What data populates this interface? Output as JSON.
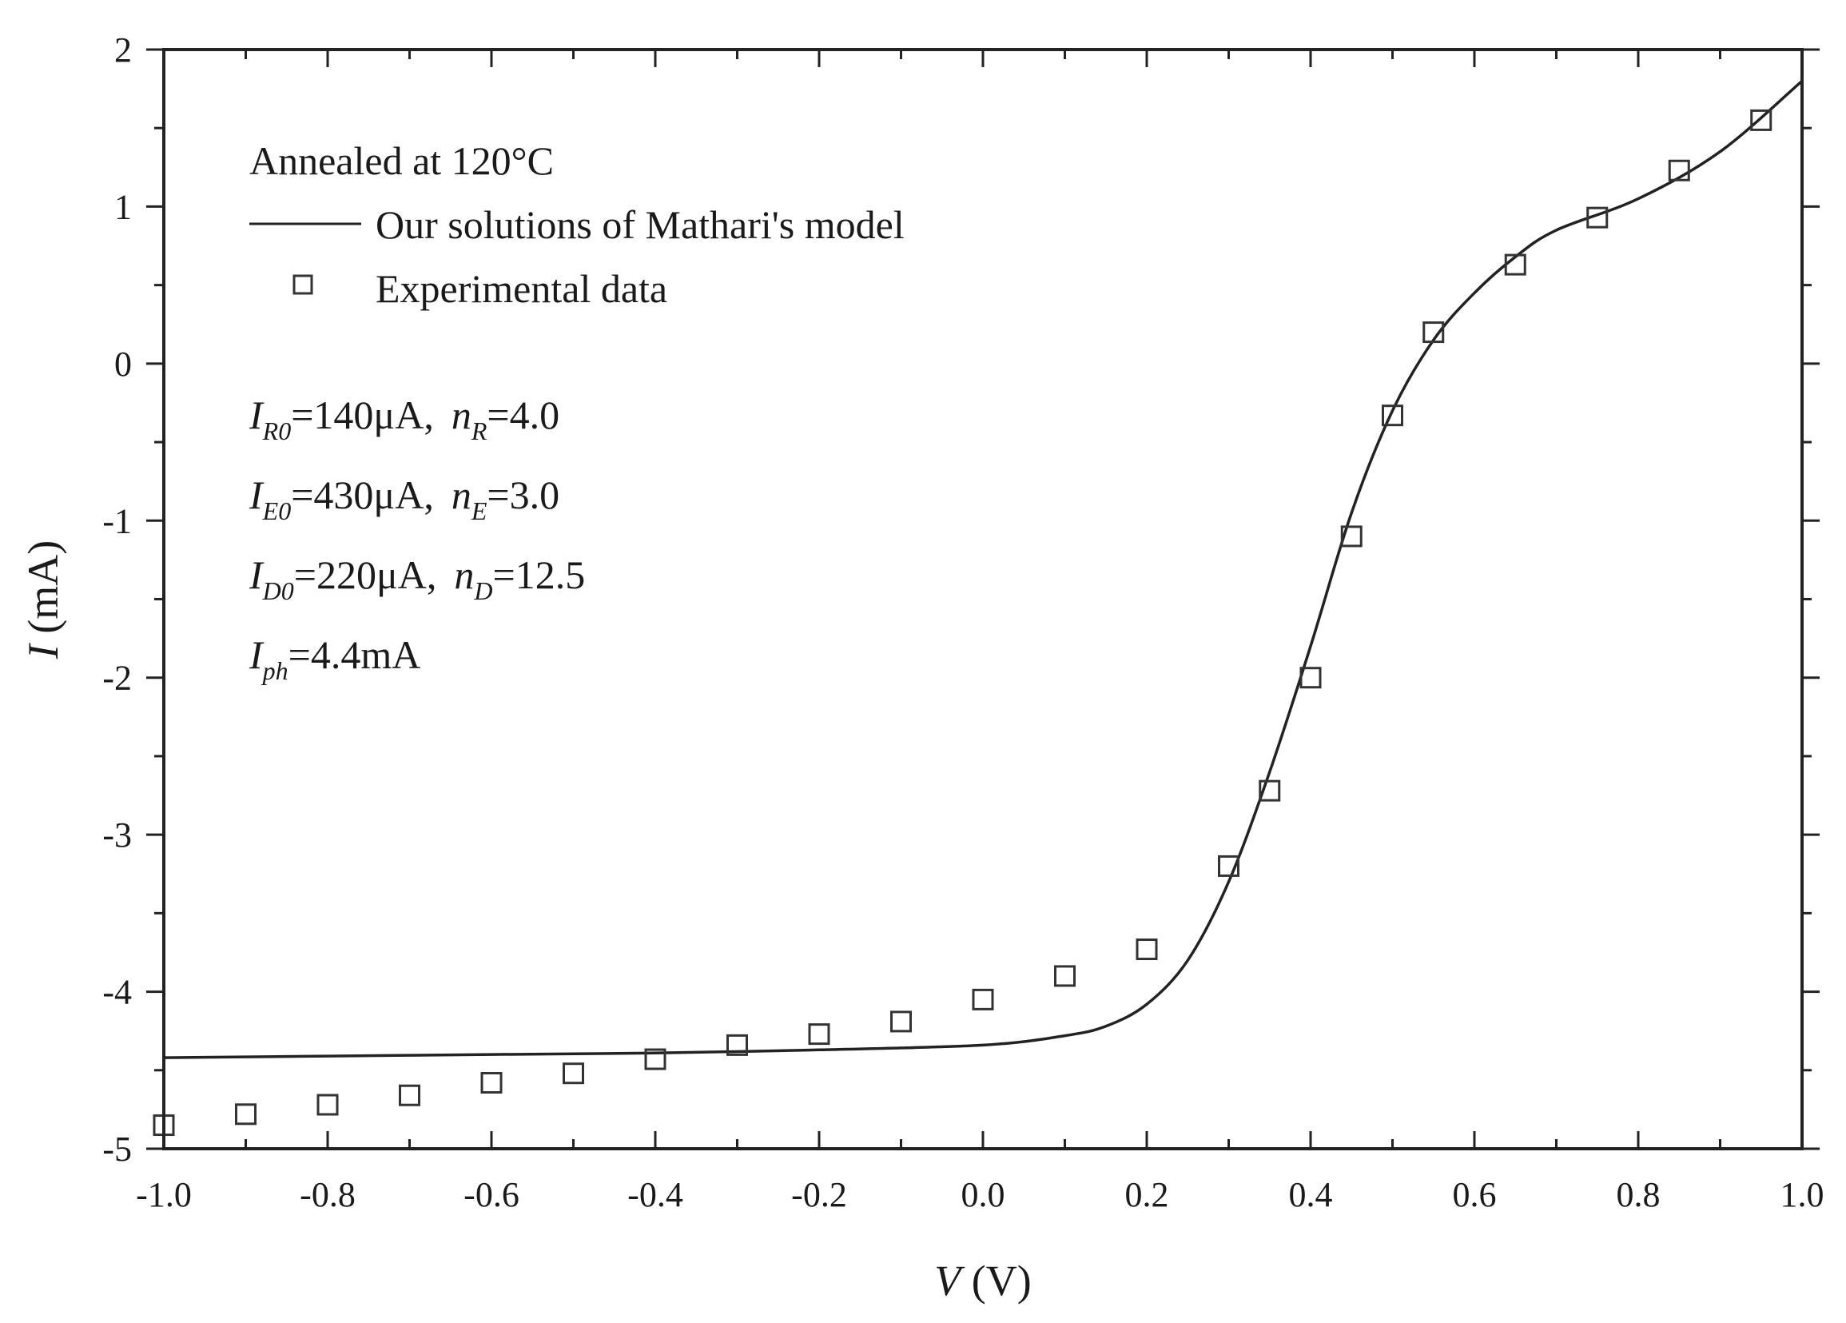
{
  "chart_data": {
    "type": "line",
    "title": "",
    "xlabel": {
      "var": "V",
      "unit": "(V)"
    },
    "ylabel": {
      "var": "I",
      "unit": "(mA)"
    },
    "xlim": [
      -1.0,
      1.0
    ],
    "ylim": [
      -5,
      2
    ],
    "x_ticks": [
      -1.0,
      -0.8,
      -0.6,
      -0.4,
      -0.2,
      0.0,
      0.2,
      0.4,
      0.6,
      0.8,
      1.0
    ],
    "x_tick_labels": [
      "-1.0",
      "-0.8",
      "-0.6",
      "-0.4",
      "-0.2",
      "0.0",
      "0.2",
      "0.4",
      "0.6",
      "0.8",
      "1.0"
    ],
    "y_ticks": [
      -5,
      -4,
      -3,
      -2,
      -1,
      0,
      1,
      2
    ],
    "y_tick_labels": [
      "-5",
      "-4",
      "-3",
      "-2",
      "-1",
      "0",
      "1",
      "2"
    ],
    "grid": false,
    "annotation_title": "Annealed at 120°C",
    "legend": [
      {
        "label": "Our solutions of Mathari's model",
        "marker": "line"
      },
      {
        "label": "Experimental data",
        "marker": "open-square"
      }
    ],
    "parameters": [
      {
        "a_sym": "I",
        "a_sub": "R0",
        "a_val": "=140μA,",
        "b_sym": "n",
        "b_sub": "R",
        "b_val": "=4.0"
      },
      {
        "a_sym": "I",
        "a_sub": "E0",
        "a_val": "=430μA,",
        "b_sym": "n",
        "b_sub": "E",
        "b_val": "=3.0"
      },
      {
        "a_sym": "I",
        "a_sub": "D0",
        "a_val": "=220μA,",
        "b_sym": "n",
        "b_sub": "D",
        "b_val": "=12.5"
      },
      {
        "a_sym": "I",
        "a_sub": "ph",
        "a_val": "=4.4mA"
      }
    ],
    "series": [
      {
        "name": "Our solutions of Mathari's model",
        "style": "line",
        "x": [
          -1.0,
          -0.8,
          -0.6,
          -0.4,
          -0.2,
          0.0,
          0.1,
          0.15,
          0.2,
          0.25,
          0.3,
          0.35,
          0.4,
          0.45,
          0.5,
          0.55,
          0.6,
          0.65,
          0.7,
          0.8,
          0.9,
          1.0
        ],
        "y": [
          -4.42,
          -4.41,
          -4.4,
          -4.39,
          -4.37,
          -4.34,
          -4.28,
          -4.22,
          -4.08,
          -3.8,
          -3.3,
          -2.6,
          -1.8,
          -0.95,
          -0.3,
          0.15,
          0.45,
          0.68,
          0.85,
          1.05,
          1.35,
          1.8
        ]
      },
      {
        "name": "Experimental data",
        "style": "scatter",
        "x": [
          -1.0,
          -0.9,
          -0.8,
          -0.7,
          -0.6,
          -0.5,
          -0.4,
          -0.3,
          -0.2,
          -0.1,
          0.0,
          0.1,
          0.2,
          0.3,
          0.35,
          0.4,
          0.45,
          0.5,
          0.55,
          0.65,
          0.75,
          0.85,
          0.95
        ],
        "y": [
          -4.85,
          -4.78,
          -4.72,
          -4.66,
          -4.58,
          -4.52,
          -4.43,
          -4.34,
          -4.27,
          -4.19,
          -4.05,
          -3.9,
          -3.73,
          -3.2,
          -2.72,
          -2.0,
          -1.1,
          -0.33,
          0.2,
          0.63,
          0.93,
          1.23,
          1.55
        ]
      }
    ]
  }
}
